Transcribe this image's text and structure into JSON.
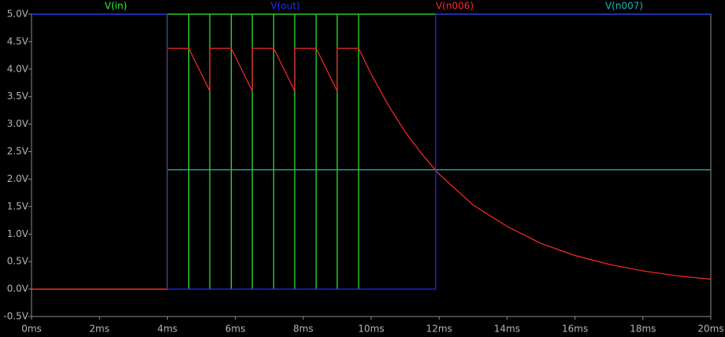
{
  "chart_data": {
    "type": "line",
    "series": [
      {
        "name": "V(in)",
        "color": "#33ee33",
        "x": [
          0,
          4,
          4,
          4.63,
          4.63,
          4.63,
          5.25,
          5.25,
          5.25,
          5.88,
          5.88,
          5.88,
          6.5,
          6.5,
          6.5,
          7.13,
          7.13,
          7.13,
          7.75,
          7.75,
          7.75,
          8.38,
          8.38,
          8.38,
          9.0,
          9.0,
          9.0,
          9.63,
          9.63,
          9.63,
          20
        ],
        "values": [
          0,
          0,
          5,
          5,
          0,
          5,
          5,
          0,
          5,
          5,
          0,
          5,
          5,
          0,
          5,
          5,
          0,
          5,
          5,
          0,
          5,
          5,
          0,
          5,
          5,
          0,
          5,
          5,
          0,
          5,
          5
        ]
      },
      {
        "name": "V(out)",
        "color": "#2828ff",
        "x": [
          0,
          4,
          4,
          11.9,
          11.9,
          20
        ],
        "values": [
          5,
          5,
          0,
          0,
          5,
          5
        ]
      },
      {
        "name": "V(n006)",
        "color": "#ff2a2a",
        "x": [
          0,
          4,
          4,
          4.63,
          5.25,
          5.25,
          5.88,
          6.5,
          6.5,
          7.13,
          7.75,
          7.75,
          8.38,
          9.0,
          9.0,
          9.63,
          10,
          10.5,
          11,
          11.5,
          12,
          13,
          14,
          15,
          16,
          17,
          18,
          19,
          20
        ],
        "values": [
          0,
          0,
          4.38,
          4.38,
          3.6,
          4.38,
          4.38,
          3.6,
          4.38,
          4.38,
          3.6,
          4.38,
          4.38,
          3.6,
          4.38,
          4.38,
          3.91,
          3.35,
          2.86,
          2.45,
          2.09,
          1.53,
          1.14,
          0.83,
          0.61,
          0.45,
          0.33,
          0.24,
          0.18
        ]
      },
      {
        "name": "V(n007)",
        "color": "#1fb5b5",
        "x": [
          0,
          4,
          4,
          20
        ],
        "values": [
          5,
          5,
          2.17,
          2.17
        ]
      }
    ],
    "xlim": [
      0,
      20
    ],
    "xticks": [
      {
        "value": 0,
        "label": "0ms"
      },
      {
        "value": 2,
        "label": "2ms"
      },
      {
        "value": 4,
        "label": "4ms"
      },
      {
        "value": 6,
        "label": "6ms"
      },
      {
        "value": 8,
        "label": "8ms"
      },
      {
        "value": 10,
        "label": "10ms"
      },
      {
        "value": 12,
        "label": "12ms"
      },
      {
        "value": 14,
        "label": "14ms"
      },
      {
        "value": 16,
        "label": "16ms"
      },
      {
        "value": 18,
        "label": "18ms"
      },
      {
        "value": 20,
        "label": "20ms"
      }
    ],
    "ylim": [
      -0.5,
      5.0
    ],
    "yticks": [
      {
        "value": -0.5,
        "label": "-0.5V"
      },
      {
        "value": 0,
        "label": "0.0V"
      },
      {
        "value": 0.5,
        "label": "0.5V"
      },
      {
        "value": 1,
        "label": "1.0V"
      },
      {
        "value": 1.5,
        "label": "1.5V"
      },
      {
        "value": 2,
        "label": "2.0V"
      },
      {
        "value": 2.5,
        "label": "2.5V"
      },
      {
        "value": 3,
        "label": "3.0V"
      },
      {
        "value": 3.5,
        "label": "3.5V"
      },
      {
        "value": 4,
        "label": "4.0V"
      },
      {
        "value": 4.5,
        "label": "4.5V"
      },
      {
        "value": 5,
        "label": "5.0V"
      }
    ]
  }
}
